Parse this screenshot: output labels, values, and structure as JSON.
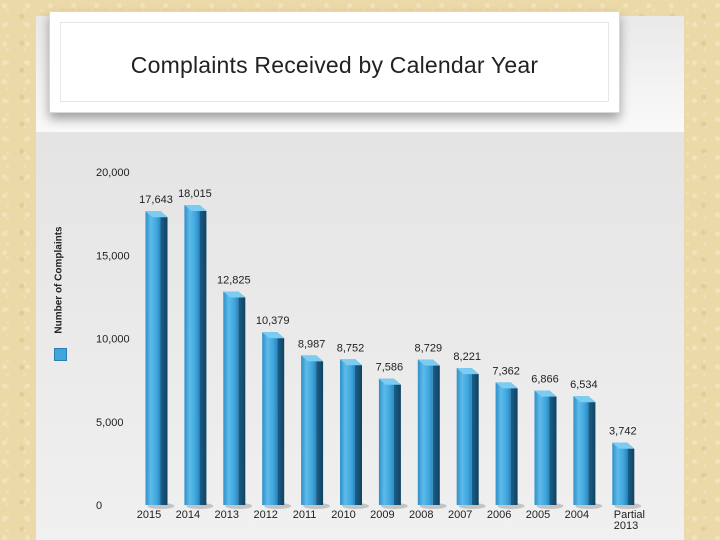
{
  "chart_data": {
    "type": "bar",
    "title": "Complaints Received by Calendar Year",
    "xlabel": "",
    "ylabel": "Number of Complaints",
    "ylim": [
      0,
      20000
    ],
    "yticks": [
      0,
      5000,
      10000,
      15000,
      20000
    ],
    "ytick_labels": [
      "0",
      "5,000",
      "10,000",
      "15,000",
      "20,000"
    ],
    "categories": [
      "2015",
      "2014",
      "2013",
      "2012",
      "2011",
      "2010",
      "2009",
      "2008",
      "2007",
      "2006",
      "2005",
      "2004",
      "Partial 2013"
    ],
    "category_labels": [
      [
        "2015"
      ],
      [
        "2014"
      ],
      [
        "2013"
      ],
      [
        "2012"
      ],
      [
        "2011"
      ],
      [
        "2010"
      ],
      [
        "2009"
      ],
      [
        "2008"
      ],
      [
        "2007"
      ],
      [
        "2006"
      ],
      [
        "2005"
      ],
      [
        "2004"
      ],
      [
        "Partial",
        "2013"
      ]
    ],
    "values": [
      17643,
      18015,
      12825,
      10379,
      8987,
      8752,
      7586,
      8729,
      8221,
      7362,
      6866,
      6534,
      3742
    ],
    "value_labels": [
      "17,643",
      "18,015",
      "12,825",
      "10,379",
      "8,987",
      "8,752",
      "7,586",
      "8,729",
      "8,221",
      "7,362",
      "6,866",
      "6,534",
      "3,742"
    ],
    "series": [
      {
        "name": "Number of Complaints",
        "color": "#3ea6dd"
      }
    ],
    "grid": false,
    "legend_position": "left"
  }
}
